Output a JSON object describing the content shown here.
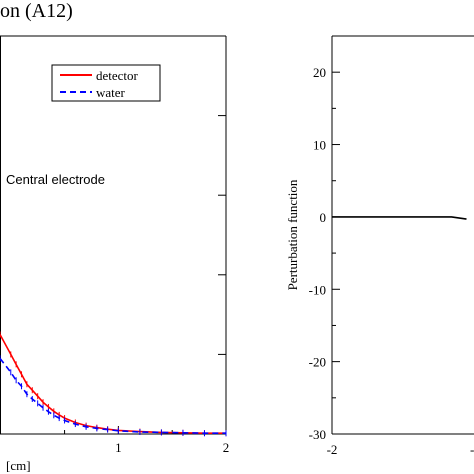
{
  "title_fragment": "on (A12)",
  "chart_data": [
    {
      "type": "line",
      "title": "on (A12)",
      "xlabel": "[cm]",
      "ylabel": "",
      "xlim": [
        -0.1,
        2.0
      ],
      "ylim": [
        0,
        1.0
      ],
      "x_ticks": [
        1,
        2
      ],
      "legend": {
        "placement": "top-right",
        "entries": [
          "detector",
          "water"
        ]
      },
      "annotation": "Central electrode",
      "grid": false,
      "series": [
        {
          "name": "detector",
          "color": "#ff0000",
          "dash": "solid",
          "x": [
            -0.1,
            0.0,
            0.05,
            0.1,
            0.15,
            0.2,
            0.25,
            0.3,
            0.35,
            0.4,
            0.45,
            0.5,
            0.6,
            0.7,
            0.8,
            0.9,
            1.0,
            1.2,
            1.4,
            1.6,
            1.8,
            2.0
          ],
          "y": [
            0.25,
            0.2,
            0.175,
            0.15,
            0.125,
            0.11,
            0.095,
            0.08,
            0.068,
            0.057,
            0.048,
            0.04,
            0.029,
            0.021,
            0.016,
            0.012,
            0.009,
            0.006,
            0.004,
            0.003,
            0.002,
            0.002
          ]
        },
        {
          "name": "water",
          "color": "#0000ff",
          "dash": "dashed",
          "x": [
            -0.1,
            0.0,
            0.05,
            0.1,
            0.15,
            0.2,
            0.25,
            0.3,
            0.35,
            0.4,
            0.45,
            0.5,
            0.6,
            0.7,
            0.8,
            0.9,
            1.0,
            1.2,
            1.4,
            1.6,
            1.8,
            2.0
          ],
          "y": [
            0.19,
            0.155,
            0.135,
            0.12,
            0.1,
            0.088,
            0.077,
            0.066,
            0.056,
            0.047,
            0.04,
            0.034,
            0.025,
            0.018,
            0.014,
            0.011,
            0.008,
            0.005,
            0.004,
            0.003,
            0.002,
            0.002
          ]
        }
      ]
    },
    {
      "type": "line",
      "title": "",
      "xlabel": "",
      "ylabel": "Perturbation function",
      "xlim": [
        -2,
        2
      ],
      "ylim": [
        -30,
        25
      ],
      "x_ticks": [
        -2
      ],
      "y_ticks": [
        -30,
        -20,
        -10,
        0,
        10,
        20
      ],
      "grid": false,
      "series": [
        {
          "name": "",
          "color": "#000000",
          "dash": "solid",
          "x": [
            -2.0,
            -1.6,
            -1.2,
            -0.8,
            -0.4,
            -0.2
          ],
          "y": [
            0,
            0,
            0,
            0,
            0,
            -0.3
          ]
        }
      ]
    }
  ]
}
